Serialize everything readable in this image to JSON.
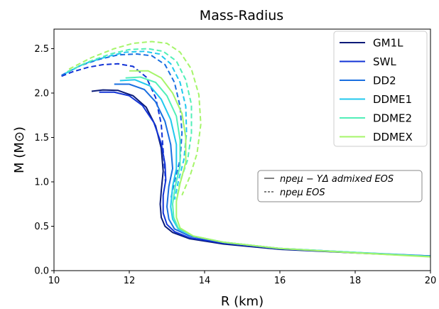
{
  "chart_data": {
    "type": "line",
    "title": "Mass-Radius",
    "xlabel": "R (km)",
    "ylabel": "M (M⊙)",
    "xlim": [
      10,
      20
    ],
    "ylim": [
      0.0,
      2.72
    ],
    "xticks": [
      "10",
      "12",
      "14",
      "16",
      "18",
      "20"
    ],
    "yticks": [
      "0.0",
      "0.5",
      "1.0",
      "1.5",
      "2.0",
      "2.5"
    ],
    "grid": false,
    "legend_position": "upper right",
    "style_legend": {
      "solid_label": "npeμ − YΔ admixed EOS",
      "dashed_label": "npeμ EOS"
    },
    "series": [
      {
        "name": "GM1L",
        "color": "#0a1a78",
        "solid": [
          [
            11.0,
            2.02
          ],
          [
            11.3,
            2.035
          ],
          [
            11.7,
            2.03
          ],
          [
            12.1,
            1.97
          ],
          [
            12.45,
            1.84
          ],
          [
            12.7,
            1.63
          ],
          [
            12.85,
            1.38
          ],
          [
            12.9,
            1.12
          ],
          [
            12.85,
            0.9
          ],
          [
            12.82,
            0.75
          ],
          [
            12.85,
            0.6
          ],
          [
            12.95,
            0.5
          ],
          [
            13.15,
            0.43
          ],
          [
            13.6,
            0.36
          ],
          [
            14.5,
            0.3
          ],
          [
            16,
            0.24
          ],
          [
            18,
            0.2
          ],
          [
            20,
            0.16
          ]
        ],
        "dashed": []
      },
      {
        "name": "SWL",
        "color": "#1233d6",
        "solid": [
          [
            11.2,
            2.01
          ],
          [
            11.6,
            2.01
          ],
          [
            12.0,
            1.97
          ],
          [
            12.35,
            1.86
          ],
          [
            12.65,
            1.67
          ],
          [
            12.85,
            1.43
          ],
          [
            12.95,
            1.2
          ],
          [
            12.97,
            1.02
          ],
          [
            12.9,
            0.85
          ],
          [
            12.9,
            0.65
          ],
          [
            13.0,
            0.52
          ],
          [
            13.2,
            0.44
          ],
          [
            13.6,
            0.37
          ],
          [
            14.5,
            0.31
          ],
          [
            16,
            0.245
          ],
          [
            18,
            0.2
          ],
          [
            20,
            0.165
          ]
        ],
        "dashed": [
          [
            10.2,
            2.19
          ],
          [
            10.5,
            2.24
          ],
          [
            10.9,
            2.29
          ],
          [
            11.3,
            2.32
          ],
          [
            11.7,
            2.33
          ],
          [
            12.1,
            2.3
          ],
          [
            12.45,
            2.18
          ],
          [
            12.7,
            1.95
          ],
          [
            12.85,
            1.65
          ],
          [
            12.9,
            1.35
          ],
          [
            12.95,
            1.1
          ],
          [
            12.96,
            1.0
          ]
        ]
      },
      {
        "name": "DD2",
        "color": "#1a6fe0",
        "solid": [
          [
            11.6,
            2.1
          ],
          [
            12.0,
            2.1
          ],
          [
            12.4,
            2.04
          ],
          [
            12.7,
            1.9
          ],
          [
            12.95,
            1.68
          ],
          [
            13.1,
            1.42
          ],
          [
            13.15,
            1.15
          ],
          [
            13.05,
            0.95
          ],
          [
            13.0,
            0.72
          ],
          [
            13.05,
            0.58
          ],
          [
            13.2,
            0.47
          ],
          [
            13.6,
            0.39
          ],
          [
            14.5,
            0.32
          ],
          [
            16,
            0.25
          ],
          [
            18,
            0.205
          ],
          [
            20,
            0.165
          ]
        ],
        "dashed": [
          [
            10.2,
            2.2
          ],
          [
            10.7,
            2.31
          ],
          [
            11.2,
            2.38
          ],
          [
            11.7,
            2.43
          ],
          [
            12.2,
            2.44
          ],
          [
            12.6,
            2.42
          ],
          [
            12.95,
            2.32
          ],
          [
            13.2,
            2.12
          ],
          [
            13.35,
            1.85
          ],
          [
            13.4,
            1.55
          ],
          [
            13.35,
            1.25
          ],
          [
            13.2,
            1.0
          ],
          [
            13.1,
            0.8
          ]
        ]
      },
      {
        "name": "DDME1",
        "color": "#22c8ee",
        "solid": [
          [
            11.75,
            2.14
          ],
          [
            12.15,
            2.15
          ],
          [
            12.55,
            2.08
          ],
          [
            12.85,
            1.93
          ],
          [
            13.1,
            1.7
          ],
          [
            13.25,
            1.42
          ],
          [
            13.25,
            1.15
          ],
          [
            13.15,
            0.95
          ],
          [
            13.1,
            0.72
          ],
          [
            13.15,
            0.58
          ],
          [
            13.3,
            0.47
          ],
          [
            13.7,
            0.39
          ],
          [
            14.5,
            0.32
          ],
          [
            16,
            0.25
          ],
          [
            18,
            0.205
          ],
          [
            20,
            0.16
          ]
        ],
        "dashed": [
          [
            10.3,
            2.22
          ],
          [
            10.8,
            2.33
          ],
          [
            11.4,
            2.41
          ],
          [
            11.9,
            2.46
          ],
          [
            12.4,
            2.47
          ],
          [
            12.8,
            2.44
          ],
          [
            13.1,
            2.33
          ],
          [
            13.35,
            2.12
          ],
          [
            13.5,
            1.85
          ],
          [
            13.52,
            1.55
          ],
          [
            13.45,
            1.25
          ],
          [
            13.3,
            1.0
          ],
          [
            13.2,
            0.8
          ]
        ]
      },
      {
        "name": "DDME2",
        "color": "#52efb8",
        "solid": [
          [
            11.9,
            2.17
          ],
          [
            12.3,
            2.18
          ],
          [
            12.7,
            2.12
          ],
          [
            13.0,
            1.97
          ],
          [
            13.25,
            1.74
          ],
          [
            13.35,
            1.47
          ],
          [
            13.35,
            1.18
          ],
          [
            13.22,
            0.95
          ],
          [
            13.15,
            0.75
          ],
          [
            13.18,
            0.6
          ],
          [
            13.3,
            0.48
          ],
          [
            13.7,
            0.39
          ],
          [
            14.5,
            0.32
          ],
          [
            16,
            0.25
          ],
          [
            18,
            0.205
          ],
          [
            20,
            0.16
          ]
        ],
        "dashed": [
          [
            10.35,
            2.24
          ],
          [
            10.9,
            2.35
          ],
          [
            11.5,
            2.44
          ],
          [
            12.0,
            2.49
          ],
          [
            12.5,
            2.5
          ],
          [
            12.9,
            2.47
          ],
          [
            13.25,
            2.36
          ],
          [
            13.5,
            2.15
          ],
          [
            13.65,
            1.87
          ],
          [
            13.65,
            1.55
          ],
          [
            13.55,
            1.25
          ],
          [
            13.35,
            1.0
          ],
          [
            13.25,
            0.8
          ]
        ]
      },
      {
        "name": "DDMEX",
        "color": "#a6f56a",
        "solid": [
          [
            12.0,
            2.25
          ],
          [
            12.5,
            2.25
          ],
          [
            12.85,
            2.17
          ],
          [
            13.15,
            2.0
          ],
          [
            13.4,
            1.77
          ],
          [
            13.5,
            1.5
          ],
          [
            13.5,
            1.22
          ],
          [
            13.35,
            0.98
          ],
          [
            13.25,
            0.78
          ],
          [
            13.25,
            0.6
          ],
          [
            13.35,
            0.48
          ],
          [
            13.7,
            0.39
          ],
          [
            14.5,
            0.32
          ],
          [
            16,
            0.25
          ],
          [
            18,
            0.2
          ],
          [
            20,
            0.155
          ]
        ],
        "dashed": [
          [
            10.4,
            2.27
          ],
          [
            11.0,
            2.4
          ],
          [
            11.6,
            2.5
          ],
          [
            12.1,
            2.56
          ],
          [
            12.6,
            2.58
          ],
          [
            13.0,
            2.56
          ],
          [
            13.35,
            2.46
          ],
          [
            13.65,
            2.27
          ],
          [
            13.85,
            1.98
          ],
          [
            13.9,
            1.65
          ],
          [
            13.8,
            1.32
          ],
          [
            13.6,
            1.05
          ],
          [
            13.4,
            0.85
          ]
        ]
      }
    ]
  }
}
